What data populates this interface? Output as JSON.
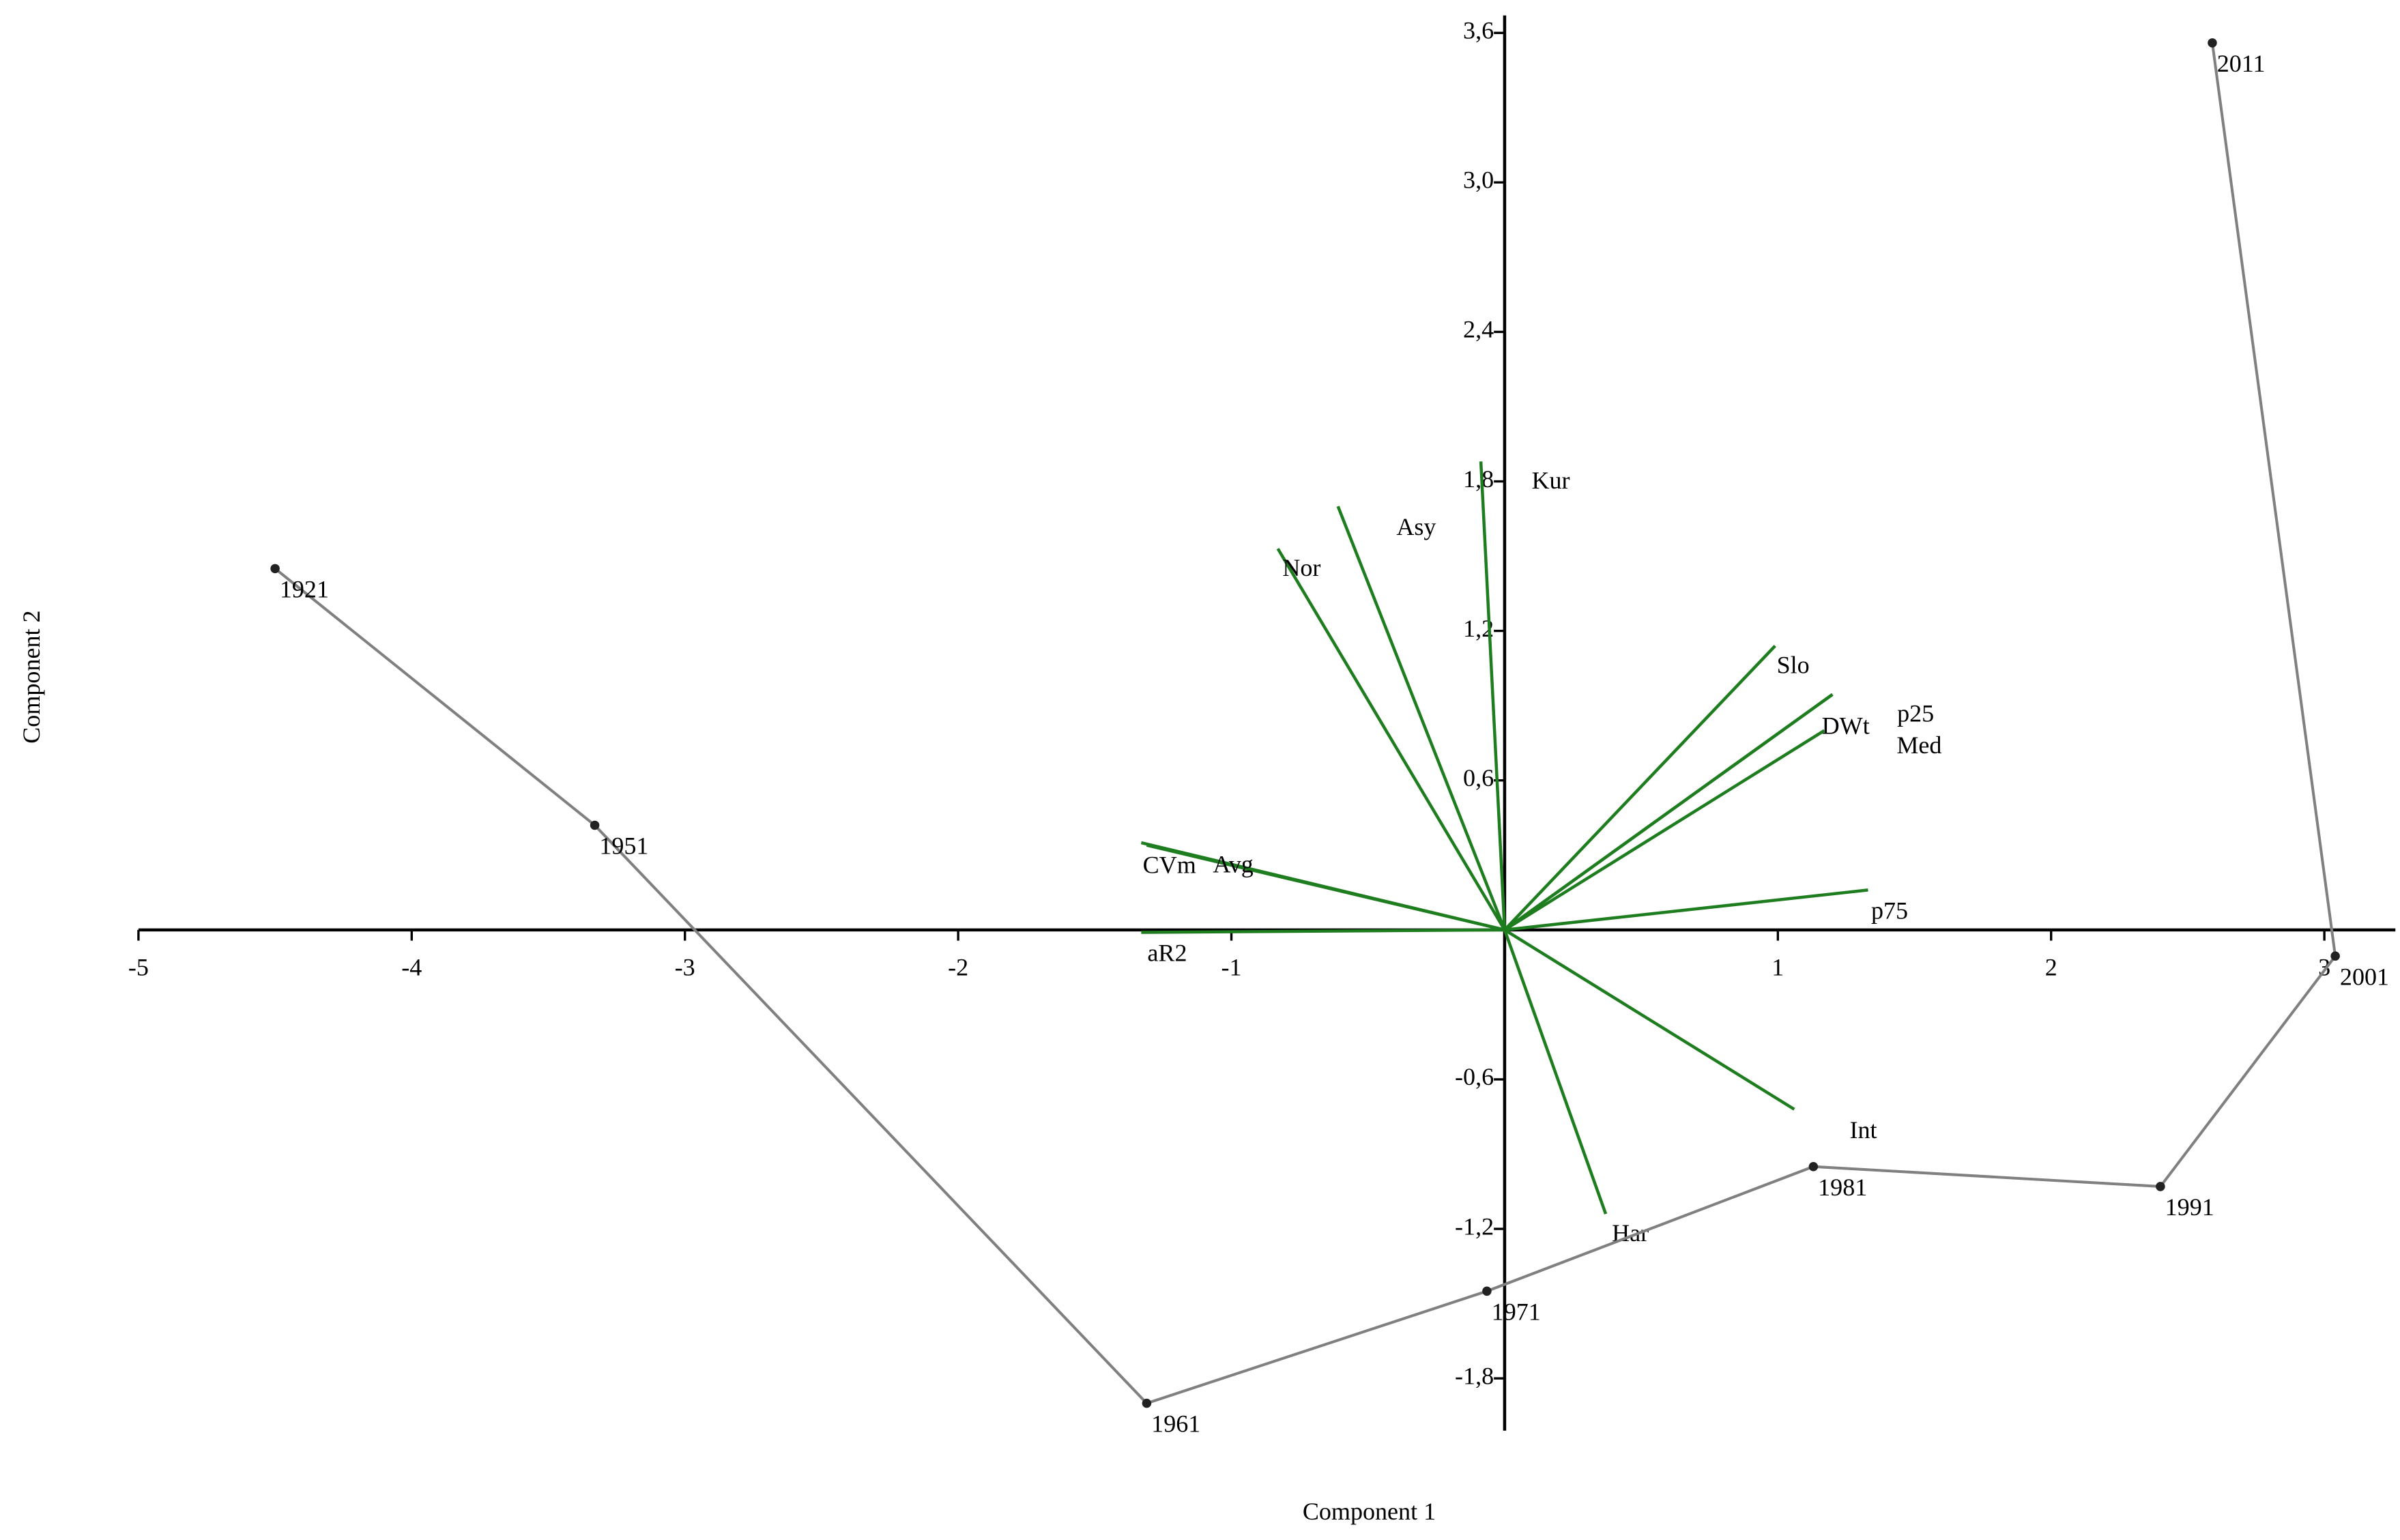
{
  "chart_data": {
    "type": "biplot",
    "xlabel": "Component 1",
    "ylabel": "Component 2",
    "xlim": [
      -5,
      3.26
    ],
    "ylim": [
      -2.01,
      3.67
    ],
    "xticks": [
      -5,
      -4,
      -3,
      -2,
      -1,
      1,
      2,
      3
    ],
    "yticks": [
      {
        "value": -1.8,
        "label": "-1,8"
      },
      {
        "value": -1.2,
        "label": "-1,2"
      },
      {
        "value": -0.6,
        "label": "-0,6"
      },
      {
        "value": 0.6,
        "label": "0,6"
      },
      {
        "value": 1.2,
        "label": "1,2"
      },
      {
        "value": 1.8,
        "label": "1,8"
      },
      {
        "value": 2.4,
        "label": "2,4"
      },
      {
        "value": 3.0,
        "label": "3,0"
      },
      {
        "value": 3.6,
        "label": "3,6"
      }
    ],
    "points": {
      "color": "#808080",
      "labels": [
        "1921",
        "1951",
        "1961",
        "1971",
        "1981",
        "1991",
        "2001",
        "2011"
      ],
      "x": [
        -4.5,
        -3.33,
        -1.31,
        -0.065,
        1.13,
        2.4,
        3.04,
        2.59
      ],
      "y": [
        1.45,
        0.42,
        -1.9,
        -1.45,
        -0.95,
        -1.03,
        -0.105,
        3.56
      ]
    },
    "loadings": {
      "color": "#1e7d1e",
      "label_color": "#1a1aff",
      "labels": [
        "Kur",
        "Asy",
        "Nor",
        "Slo",
        "DWt",
        "p25",
        "Med",
        "p75",
        "CVm",
        "Avg",
        "aR2",
        "Int",
        "Har"
      ],
      "x": [
        -0.087,
        -0.61,
        -0.83,
        0.99,
        1.2,
        1.2,
        1.17,
        1.33,
        -1.33,
        -1.31,
        -1.33,
        1.06,
        0.37
      ],
      "y": [
        1.88,
        1.7,
        1.53,
        1.14,
        0.945,
        0.945,
        0.8,
        0.16,
        0.35,
        0.34,
        -0.01,
        -0.72,
        -1.14
      ]
    }
  }
}
